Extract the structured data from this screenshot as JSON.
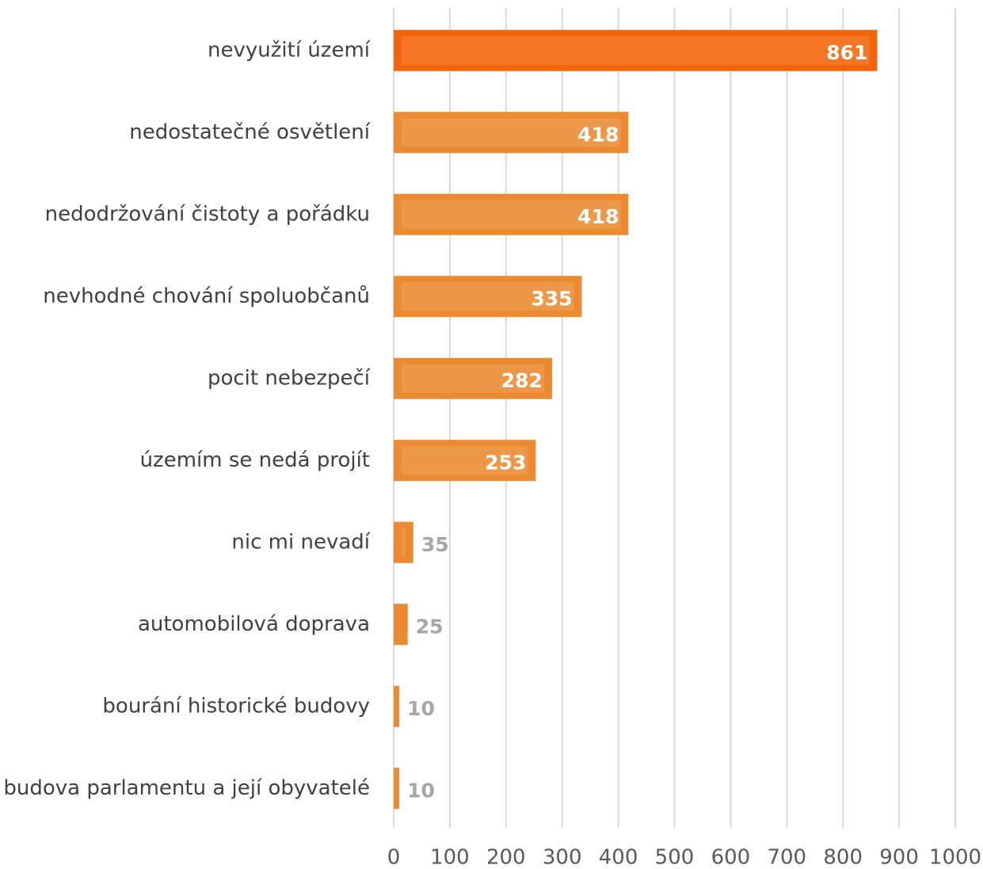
{
  "chart_data": {
    "type": "bar",
    "orientation": "horizontal",
    "categories": [
      "nevyužití území",
      "nedostatečné osvětlení",
      "nedodržování čistoty a pořádku",
      "nevhodné chování spoluobčanů",
      "pocit nebezpečí",
      "územím se nedá projít",
      "nic mi nevadí",
      "automobilová doprava",
      "bourání historické budovy",
      "budova parlamentu a její obyvatelé"
    ],
    "values": [
      861,
      418,
      418,
      335,
      282,
      253,
      35,
      25,
      10,
      10
    ],
    "colors": [
      "#f2650a",
      "#eb8a30",
      "#eb8a30",
      "#eb8a30",
      "#eb8a30",
      "#eb8a30",
      "#eb8a30",
      "#eb8a30",
      "#eb8a30",
      "#eb8a30"
    ],
    "xlim": [
      0,
      1000
    ],
    "xticks": [
      0,
      100,
      200,
      300,
      400,
      500,
      600,
      700,
      800,
      900,
      1000
    ],
    "grid": true
  }
}
